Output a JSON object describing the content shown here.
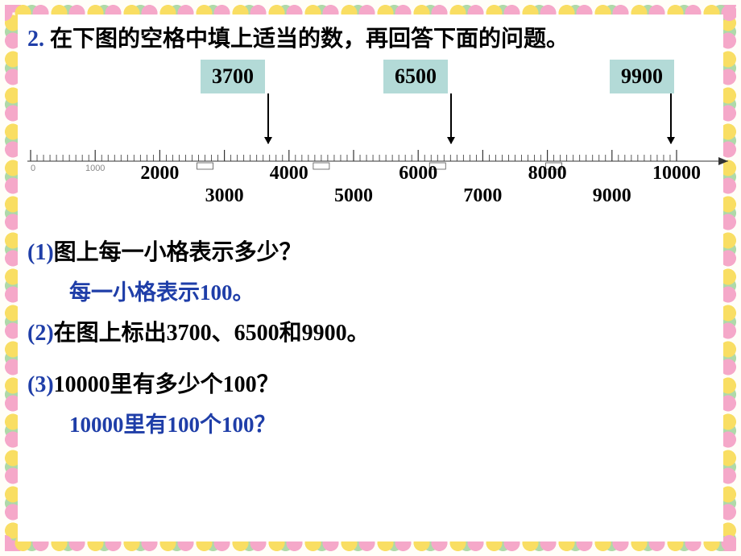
{
  "title": {
    "number": "2.",
    "text_a": " 在下图的空格中填上适当的数，再回答下面的问题。"
  },
  "chart": {
    "boxes": [
      {
        "value": "3700",
        "x_percent": 33
      },
      {
        "value": "6500",
        "x_percent": 58.5
      },
      {
        "value": "9900",
        "x_percent": 90
      }
    ],
    "axis": {
      "min": 0,
      "max": 10000,
      "minor_step": 100,
      "major_step": 1000,
      "labels_above": [
        {
          "v": "2000",
          "x": 18.5
        },
        {
          "v": "4000",
          "x": 36
        },
        {
          "v": "6000",
          "x": 54
        },
        {
          "v": "8000",
          "x": 72
        },
        {
          "v": "10000",
          "x": 90.5
        }
      ],
      "labels_below": [
        {
          "v": "3000",
          "x": 27
        },
        {
          "v": "5000",
          "x": 45
        },
        {
          "v": "7000",
          "x": 63
        },
        {
          "v": "9000",
          "x": 81
        }
      ],
      "printed_labels": [
        {
          "v": "0",
          "x": 0.5
        },
        {
          "v": "1000",
          "x": 9.3
        }
      ],
      "box_marks_x": [
        27,
        45,
        63,
        81
      ]
    },
    "colors": {
      "box_bg": "#b3dad7",
      "axis": "#333333"
    }
  },
  "questions": {
    "q1": {
      "label": "(1)",
      "text": "图上每一小格表示多少？"
    },
    "a1": {
      "pre": "每一小格表示",
      "num": "100",
      "post": "。"
    },
    "q2": {
      "label": "(2)",
      "text": "在图上标出3700、6500和9900。"
    },
    "q3": {
      "label": "(3)",
      "text": "10000里有多少个100？"
    },
    "a3": {
      "pre": "10000",
      "mid": "里有",
      "num2": "100",
      "mid2": "个",
      "num3": "100",
      "post": "？"
    }
  }
}
